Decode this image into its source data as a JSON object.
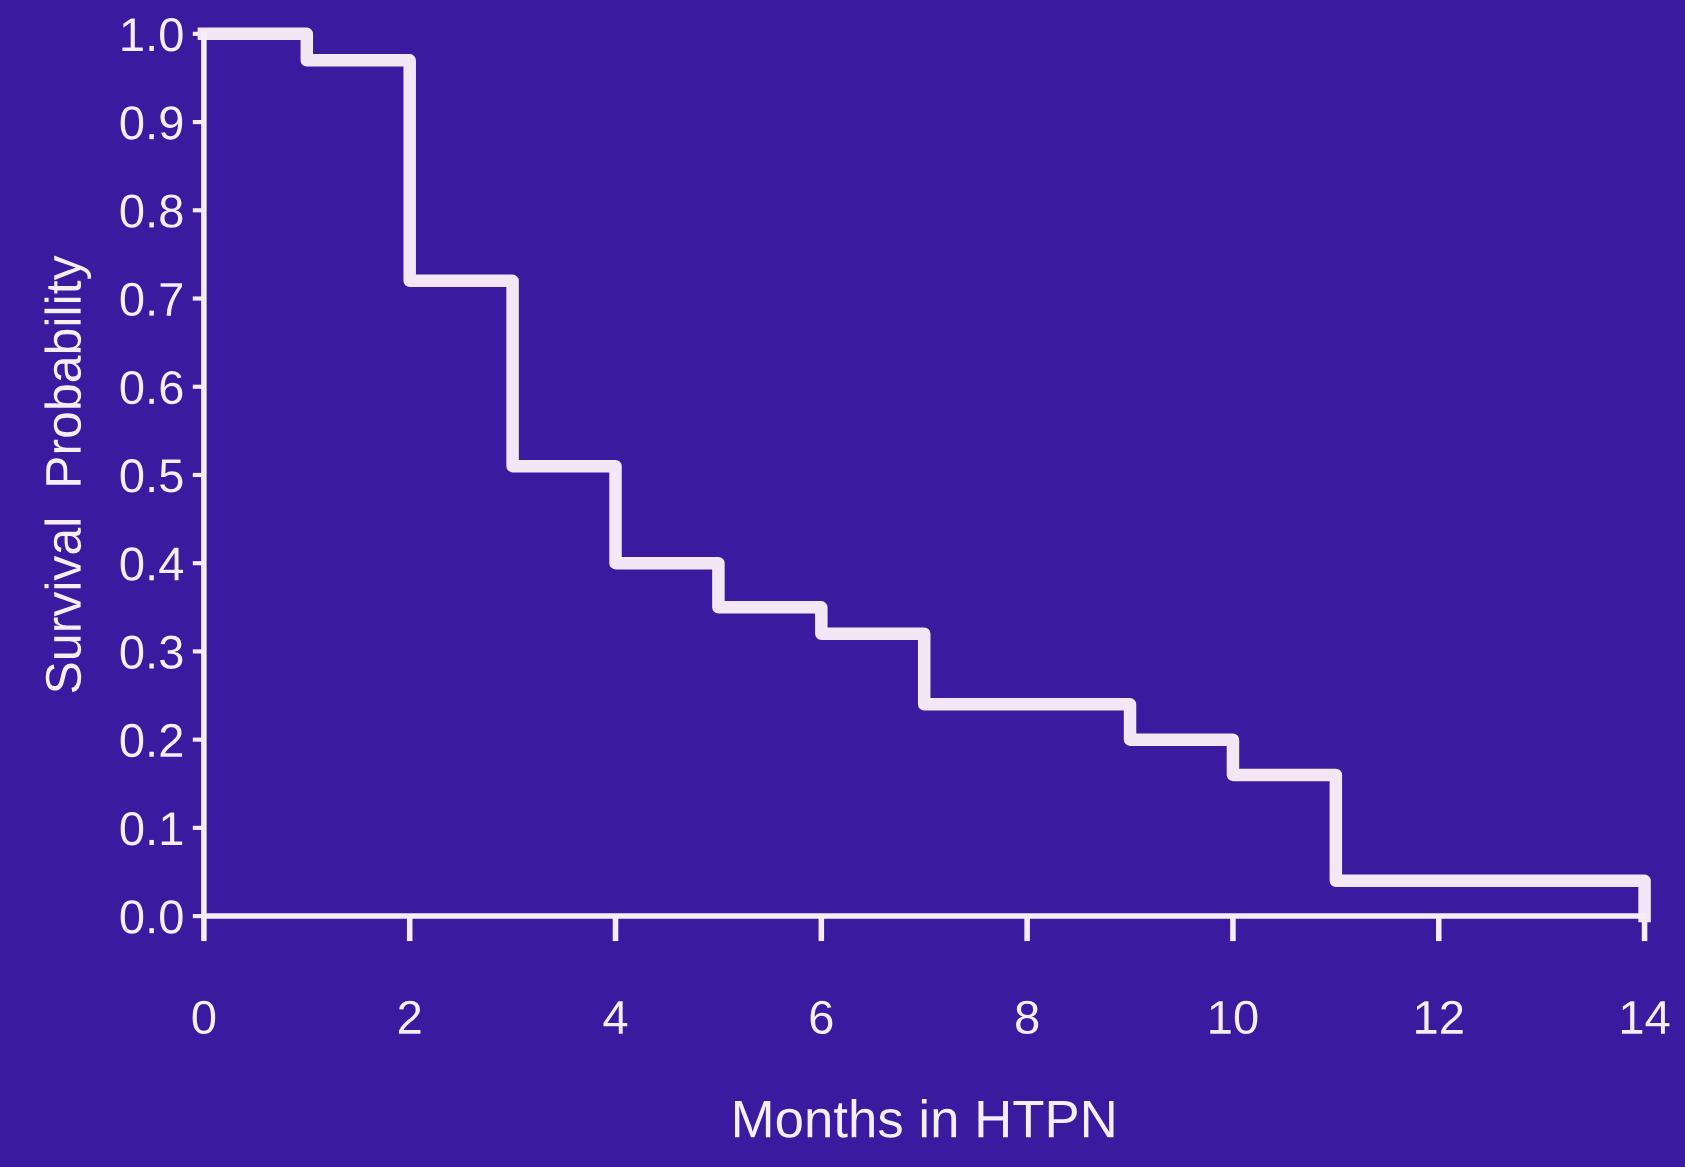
{
  "chart_data": {
    "type": "step",
    "xlabel": "Months in HTPN",
    "ylabel": "Survival  Probability",
    "x": [
      0,
      1,
      2,
      3,
      4,
      5,
      6,
      7,
      9,
      10,
      11,
      14
    ],
    "series": [
      {
        "color": "#f4e6f4",
        "values": [
          1.0,
          0.97,
          0.72,
          0.51,
          0.4,
          0.35,
          0.32,
          0.24,
          0.2,
          0.16,
          0.04,
          0.0
        ]
      }
    ],
    "xlim": [
      0,
      14
    ],
    "xticks": [
      0,
      2,
      4,
      6,
      8,
      10,
      12,
      14
    ],
    "ylim": [
      0,
      1
    ],
    "yticks": [
      {
        "value": 0,
        "label": "0.0"
      },
      0.1,
      0.2,
      0.3,
      0.4,
      0.5,
      0.6,
      0.7,
      0.8,
      0.9,
      {
        "value": 1,
        "label": "1.0"
      }
    ],
    "grid": false,
    "legend": false,
    "line_style": "solid"
  }
}
